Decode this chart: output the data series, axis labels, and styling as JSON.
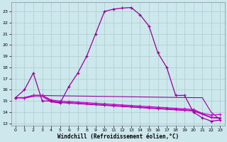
{
  "xlabel": "Windchill (Refroidissement éolien,°C)",
  "bg_color": "#cce8ec",
  "grid_color": "#aacccc",
  "line_color": "#990099",
  "xlim": [
    -0.5,
    23.5
  ],
  "ylim": [
    12.8,
    23.8
  ],
  "xticks": [
    0,
    1,
    2,
    3,
    4,
    5,
    6,
    7,
    8,
    9,
    10,
    11,
    12,
    13,
    14,
    15,
    16,
    17,
    18,
    19,
    20,
    21,
    22,
    23
  ],
  "yticks": [
    13,
    14,
    15,
    16,
    17,
    18,
    19,
    20,
    21,
    22,
    23
  ],
  "curve1_x": [
    0,
    1,
    2,
    3,
    4,
    5,
    6,
    7,
    8,
    9,
    10,
    11,
    12,
    13,
    14,
    15,
    16,
    17,
    18,
    19,
    20,
    21,
    22,
    23
  ],
  "curve1_y": [
    15.3,
    16.0,
    17.5,
    15.0,
    15.0,
    14.8,
    16.3,
    17.5,
    19.0,
    21.0,
    23.0,
    23.2,
    23.3,
    23.35,
    22.7,
    21.7,
    19.3,
    18.0,
    15.5,
    15.5,
    14.0,
    13.5,
    13.2,
    13.3
  ],
  "curve2_x": [
    0,
    1,
    2,
    3,
    4,
    5,
    6,
    7,
    8,
    9,
    10,
    11,
    12,
    13,
    14,
    15,
    16,
    17,
    18,
    19,
    20,
    21,
    22,
    23
  ],
  "curve2_y": [
    15.3,
    15.3,
    15.5,
    15.5,
    15.1,
    15.0,
    14.95,
    14.9,
    14.85,
    14.8,
    14.75,
    14.7,
    14.65,
    14.6,
    14.55,
    14.5,
    14.45,
    14.4,
    14.35,
    14.3,
    14.25,
    13.9,
    13.75,
    13.8
  ],
  "curve3_x": [
    0,
    1,
    2,
    3,
    4,
    5,
    6,
    7,
    8,
    9,
    10,
    11,
    12,
    13,
    14,
    15,
    16,
    17,
    18,
    19,
    20,
    21,
    22,
    23
  ],
  "curve3_y": [
    15.3,
    15.3,
    15.5,
    15.5,
    15.0,
    14.9,
    14.85,
    14.8,
    14.75,
    14.7,
    14.65,
    14.6,
    14.55,
    14.5,
    14.45,
    14.4,
    14.35,
    14.3,
    14.25,
    14.2,
    14.15,
    13.85,
    13.55,
    13.5
  ],
  "curve4_x": [
    0,
    1,
    2,
    20,
    21,
    22,
    23
  ],
  "curve4_y": [
    15.3,
    15.3,
    15.5,
    15.3,
    15.3,
    14.0,
    13.35
  ],
  "curve5_x": [
    0,
    1,
    2,
    3,
    4,
    5,
    6,
    7,
    8,
    9,
    10,
    11,
    12,
    13,
    14,
    15,
    16,
    17,
    18,
    19,
    20,
    21,
    22,
    23
  ],
  "curve5_y": [
    15.3,
    15.25,
    15.4,
    15.4,
    14.9,
    14.85,
    14.8,
    14.75,
    14.7,
    14.65,
    14.6,
    14.55,
    14.5,
    14.45,
    14.4,
    14.35,
    14.3,
    14.25,
    14.2,
    14.15,
    14.1,
    13.8,
    13.5,
    13.45
  ]
}
